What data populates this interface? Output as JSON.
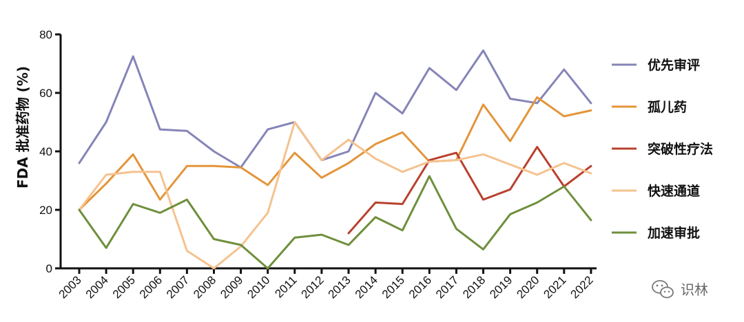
{
  "chart_data": {
    "type": "line",
    "ylabel": "FDA 批准药物 (%)",
    "ylim": [
      0,
      80
    ],
    "yticks": [
      0,
      20,
      40,
      60,
      80
    ],
    "categories": [
      "2003",
      "2004",
      "2005",
      "2006",
      "2007",
      "2008",
      "2009",
      "2010",
      "2011",
      "2012",
      "2013",
      "2014",
      "2015",
      "2016",
      "2017",
      "2018",
      "2019",
      "2020",
      "2021",
      "2022"
    ],
    "legend_position": "right",
    "grid": false,
    "series": [
      {
        "name": "优先审评",
        "color": "#8584b8",
        "values": [
          36,
          50,
          72.5,
          47.5,
          47,
          40,
          34.5,
          47.5,
          50,
          37,
          40,
          60,
          53,
          68.5,
          61,
          74.5,
          58,
          56.5,
          68,
          56.5
        ]
      },
      {
        "name": "孤儿药",
        "color": "#e3953a",
        "values": [
          20,
          29,
          39,
          23.5,
          35,
          35,
          34.5,
          28.5,
          39.5,
          31,
          36,
          42.5,
          46.5,
          36.5,
          37,
          56,
          43.5,
          58.5,
          52,
          54
        ]
      },
      {
        "name": "突破性疗法",
        "color": "#b8412e",
        "values": [
          null,
          null,
          null,
          null,
          null,
          null,
          null,
          null,
          null,
          null,
          12,
          22.5,
          22,
          37,
          39.5,
          23.5,
          27,
          41.5,
          28,
          35
        ]
      },
      {
        "name": "快速通道",
        "color": "#f5c28e",
        "values": [
          20,
          32,
          33,
          33,
          6,
          0,
          7.5,
          19,
          50,
          37,
          44,
          37.5,
          33,
          36.5,
          37,
          39,
          35.5,
          32,
          36,
          32.5
        ]
      },
      {
        "name": "加速审批",
        "color": "#6e8f3c",
        "values": [
          20,
          7,
          22,
          19,
          23.5,
          10,
          8,
          0,
          10.5,
          11.5,
          8,
          17.5,
          13,
          31.5,
          13.5,
          6.5,
          18.5,
          22.5,
          28,
          16.5
        ]
      }
    ]
  },
  "watermark": {
    "text": "识林",
    "icon": "wechat-icon"
  }
}
